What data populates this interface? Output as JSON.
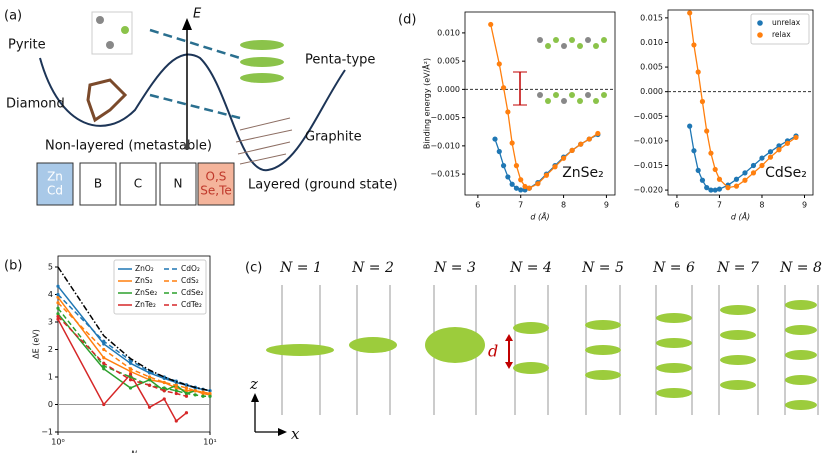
{
  "panel_a": {
    "label": "(a)",
    "axis": "E",
    "pyrite": "Pyrite",
    "diamond": "Diamond",
    "penta": "Penta-type",
    "graphite": "Graphite",
    "nonlayered": "Non-layered (metastable)",
    "layered": "Layered (ground state)",
    "elements": [
      [
        "Zn",
        "Cd"
      ],
      [
        "B"
      ],
      [
        "C"
      ],
      [
        "N"
      ],
      [
        "O,S",
        "Se,Te"
      ]
    ]
  },
  "panel_c": {
    "label": "(c)",
    "titles": [
      "N = 1",
      "N = 2",
      "N = 3",
      "N = 4",
      "N = 5",
      "N = 6",
      "N = 7",
      "N = 8"
    ],
    "d": "d",
    "z": "z",
    "x": "x"
  },
  "chart_data": [
    {
      "type": "line",
      "panel_label": "(b)",
      "xlabel": "N",
      "ylabel": "ΔE (eV)",
      "xscale": "log",
      "xlim": [
        1,
        10
      ],
      "ylim": [
        -1,
        5.4
      ],
      "xticks": [
        {
          "value": 1,
          "label": "10⁰"
        },
        {
          "value": 10,
          "label": "10¹"
        }
      ],
      "yticks": [
        {
          "value": -1,
          "label": "−1"
        },
        0,
        1,
        2,
        3,
        4,
        5
      ],
      "hline": 0,
      "markers": true,
      "legend": {
        "loc": "upper right",
        "ncol": 2
      },
      "x": [
        1,
        2,
        3,
        4,
        5,
        6,
        7,
        8,
        9,
        10
      ],
      "series": [
        {
          "name": "ZnO₂",
          "color": "#1f77b4",
          "linestyle": "solid",
          "values": [
            4.3,
            2.2,
            1.5,
            1.15,
            0.95,
            0.8,
            0.7,
            0.6,
            0.55,
            0.5
          ]
        },
        {
          "name": "ZnS₂",
          "color": "#ff7f0e",
          "linestyle": "solid",
          "values": [
            3.9,
            1.7,
            1.2,
            0.9,
            0.8,
            0.6,
            0.5,
            0.5,
            0.4,
            0.35
          ]
        },
        {
          "name": "ZnSe₂",
          "color": "#2ca02c",
          "linestyle": "solid",
          "values": [
            3.3,
            1.3,
            0.6,
            0.9,
            0.5,
            0.7,
            0.4,
            0.5,
            null,
            0.3
          ]
        },
        {
          "name": "ZnTe₂",
          "color": "#d62728",
          "linestyle": "solid",
          "values": [
            3.1,
            0.0,
            1.1,
            -0.1,
            0.2,
            -0.6,
            -0.3,
            null,
            null,
            null
          ]
        },
        {
          "name": "CdO₂",
          "color": "#1f77b4",
          "linestyle": "dashed",
          "values": [
            4.0,
            2.3,
            1.6,
            1.2,
            1.0,
            0.85,
            0.72,
            0.63,
            0.55,
            0.5
          ]
        },
        {
          "name": "CdS₂",
          "color": "#ff7f0e",
          "linestyle": "dashed",
          "values": [
            3.7,
            2.0,
            1.3,
            1.0,
            0.8,
            0.7,
            0.6,
            0.5,
            0.45,
            0.4
          ]
        },
        {
          "name": "CdSe₂",
          "color": "#2ca02c",
          "linestyle": "dashed",
          "values": [
            3.5,
            1.4,
            1.0,
            0.7,
            0.6,
            0.5,
            0.4,
            0.35,
            0.3,
            0.3
          ]
        },
        {
          "name": "CdTe₂",
          "color": "#d62728",
          "linestyle": "dashed",
          "values": [
            3.2,
            1.5,
            0.9,
            0.7,
            0.5,
            0.4,
            0.3,
            null,
            null,
            null
          ]
        },
        {
          "color": "#000000",
          "linestyle": "dashdot",
          "values": [
            5.0,
            2.5,
            1.67,
            1.25,
            1.0,
            0.83,
            0.71,
            0.62,
            0.56,
            0.5
          ]
        }
      ]
    },
    {
      "type": "scatter",
      "panel_label": "(d)",
      "xlabel": "d (Å)",
      "ylabel": "Binding energy (eV/Å²)",
      "annotation": "ZnSe₂",
      "xlim": [
        5.7,
        9.2
      ],
      "ylim": [
        -0.0187,
        0.0137
      ],
      "xticks": [
        6,
        7,
        8,
        9
      ],
      "yticks": [
        {
          "value": -0.015,
          "label": "−0.015"
        },
        {
          "value": -0.01,
          "label": "−0.010"
        },
        {
          "value": -0.005,
          "label": "−0.005"
        },
        {
          "value": 0,
          "label": "0.000"
        },
        {
          "value": 0.005,
          "label": "0.005"
        },
        {
          "value": 0.01,
          "label": "0.010"
        }
      ],
      "hline": 0,
      "series": [
        {
          "color": "#1f77b4",
          "x": [
            6.4,
            6.5,
            6.6,
            6.7,
            6.8,
            6.9,
            7.0,
            7.1,
            7.2,
            7.4,
            7.6,
            7.8,
            8.0,
            8.2,
            8.4,
            8.6,
            8.8
          ],
          "values": [
            -0.0088,
            -0.011,
            -0.0135,
            -0.0155,
            -0.0168,
            -0.0175,
            -0.0178,
            -0.0178,
            -0.0175,
            -0.0165,
            -0.015,
            -0.0135,
            -0.012,
            -0.0108,
            -0.0097,
            -0.0088,
            -0.008
          ]
        },
        {
          "color": "#ff7f0e",
          "x": [
            6.3,
            6.5,
            6.6,
            6.7,
            6.8,
            6.9,
            7.0,
            7.1,
            7.2,
            7.4,
            7.6,
            7.8,
            8.0,
            8.2,
            8.4,
            8.6,
            8.8
          ],
          "values": [
            0.0115,
            0.0045,
            0.0003,
            -0.004,
            -0.0095,
            -0.0135,
            -0.016,
            -0.0172,
            -0.0175,
            -0.0167,
            -0.0152,
            -0.0137,
            -0.0122,
            -0.0108,
            -0.0097,
            -0.0088,
            -0.0078
          ]
        }
      ]
    },
    {
      "type": "scatter",
      "xlabel": "d (Å)",
      "annotation": "CdSe₂",
      "legend": {
        "loc": "upper right",
        "ncol": 1
      },
      "xlim": [
        5.79,
        9.2
      ],
      "ylim": [
        -0.021,
        0.0166
      ],
      "xticks": [
        6,
        7,
        8,
        9
      ],
      "yticks": [
        {
          "value": -0.02,
          "label": "−0.020"
        },
        {
          "value": -0.015,
          "label": "−0.015"
        },
        {
          "value": -0.01,
          "label": "−0.010"
        },
        {
          "value": -0.005,
          "label": "−0.005"
        },
        {
          "value": 0,
          "label": "0.000"
        },
        {
          "value": 0.005,
          "label": "0.005"
        },
        {
          "value": 0.01,
          "label": "0.010"
        },
        {
          "value": 0.015,
          "label": "0.015"
        }
      ],
      "hline": 0,
      "series": [
        {
          "name": "unrelax",
          "color": "#1f77b4",
          "x": [
            6.3,
            6.4,
            6.5,
            6.6,
            6.7,
            6.8,
            6.9,
            7.0,
            7.2,
            7.4,
            7.6,
            7.8,
            8.0,
            8.2,
            8.4,
            8.6,
            8.8
          ],
          "values": [
            -0.007,
            -0.012,
            -0.016,
            -0.018,
            -0.0195,
            -0.02,
            -0.02,
            -0.0198,
            -0.019,
            -0.0178,
            -0.0165,
            -0.015,
            -0.0135,
            -0.0122,
            -0.011,
            -0.01,
            -0.009
          ]
        },
        {
          "name": "relax",
          "color": "#ff7f0e",
          "x": [
            6.3,
            6.4,
            6.5,
            6.6,
            6.7,
            6.8,
            6.9,
            7.0,
            7.2,
            7.4,
            7.6,
            7.8,
            8.0,
            8.2,
            8.4,
            8.6,
            8.8
          ],
          "values": [
            0.016,
            0.0095,
            0.004,
            -0.002,
            -0.008,
            -0.0125,
            -0.0158,
            -0.0178,
            -0.0195,
            -0.0192,
            -0.018,
            -0.0165,
            -0.015,
            -0.0133,
            -0.0118,
            -0.0105,
            -0.0093
          ]
        }
      ]
    }
  ]
}
